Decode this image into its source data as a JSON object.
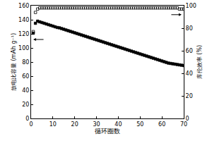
{
  "chart_data": {
    "type": "scatter",
    "x_label": "循环圈数",
    "y_label": "放电比容量 (mAh g⁻¹)",
    "y2_label": "库伦效率 (%)",
    "x": [
      1,
      2,
      3,
      4,
      5,
      6,
      7,
      8,
      9,
      10,
      11,
      12,
      13,
      14,
      15,
      16,
      17,
      18,
      19,
      20,
      21,
      22,
      23,
      24,
      25,
      26,
      27,
      28,
      29,
      30,
      31,
      32,
      33,
      34,
      35,
      36,
      37,
      38,
      39,
      40,
      41,
      42,
      43,
      44,
      45,
      46,
      47,
      48,
      49,
      50,
      51,
      52,
      53,
      54,
      55,
      56,
      57,
      58,
      59,
      60,
      61,
      62,
      63,
      64,
      65,
      66,
      67,
      68,
      69,
      70
    ],
    "xlim": [
      0,
      70
    ],
    "xticks": [
      0,
      10,
      20,
      30,
      40,
      50,
      60,
      70
    ],
    "ylim": [
      0,
      160
    ],
    "yticks": [
      0,
      20,
      40,
      60,
      80,
      100,
      120,
      140,
      160
    ],
    "y2lim": [
      0,
      100
    ],
    "y2ticks": [
      0,
      20,
      40,
      60,
      80,
      100
    ],
    "series": [
      {
        "color": "#000000",
        "marker": "square",
        "values": [
          121,
          135,
          138,
          137,
          136,
          135,
          134,
          133,
          132,
          131,
          130,
          129,
          128.5,
          127.5,
          126.5,
          125.5,
          124.5,
          123.5,
          122.5,
          121.5,
          120.5,
          119.5,
          118.5,
          117.5,
          116.5,
          115.5,
          114.5,
          113.5,
          112.5,
          111.5,
          110.5,
          109.5,
          108.5,
          107.5,
          106.5,
          105.5,
          104.5,
          103.5,
          102.5,
          101.5,
          100.5,
          99.5,
          98.5,
          97.5,
          96.5,
          95.5,
          94.5,
          93.5,
          92.5,
          91.5,
          90.5,
          89.5,
          88.5,
          87.5,
          86.5,
          85.5,
          84.5,
          83.5,
          82.5,
          81.5,
          80.5,
          79.5,
          78.5,
          78,
          77.5,
          77,
          76.5,
          76,
          75.5,
          75
        ]
      },
      {
        "color": "#000000",
        "marker": "square-open",
        "axis": "y2",
        "values": [
          77,
          94,
          97,
          98,
          98,
          98,
          98,
          98,
          98,
          98,
          98,
          98,
          98,
          98,
          98,
          98,
          98,
          98,
          98,
          98,
          98,
          98,
          98,
          98,
          98,
          98,
          98,
          98,
          98,
          98,
          98,
          98,
          98,
          98,
          98,
          98,
          98,
          98,
          98,
          98,
          98,
          98,
          98,
          98,
          98,
          98,
          98,
          98,
          98,
          98,
          98,
          98,
          98,
          98,
          98,
          98,
          98,
          98,
          98,
          98,
          98,
          98,
          98,
          98,
          98,
          98,
          98,
          97,
          97,
          97
        ]
      }
    ]
  }
}
